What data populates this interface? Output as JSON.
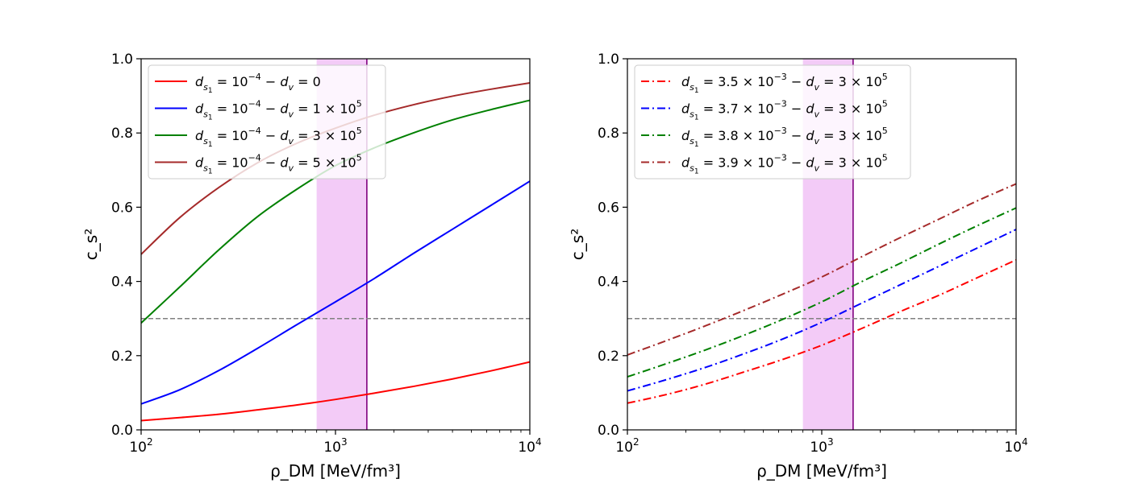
{
  "chart_data": [
    {
      "type": "line",
      "xscale": "log",
      "xlim": [
        100,
        10000
      ],
      "ylim": [
        0,
        1
      ],
      "xlabel": "ρ_DM [MeV/fm³]",
      "ylabel": "c_s²",
      "x_ticks": [
        {
          "base": "10",
          "exp": "2"
        },
        {
          "base": "10",
          "exp": "3"
        },
        {
          "base": "10",
          "exp": "4"
        }
      ],
      "y_ticks": [
        "0.0",
        "0.2",
        "0.4",
        "0.6",
        "0.8",
        "1.0"
      ],
      "hline": {
        "y": 0.3,
        "color": "#808080",
        "style": "dashed"
      },
      "band": {
        "x": [
          800,
          1450
        ],
        "color": "#e9a0f0"
      },
      "vline": {
        "x": 1450,
        "color": "#800080"
      },
      "legend": {
        "location": "upper-left"
      },
      "x": [
        100,
        158,
        251,
        398,
        631,
        1000,
        1585,
        2512,
        3981,
        6310,
        10000
      ],
      "series": [
        {
          "name": "d_s1 = 10^-4 − d_v = 0",
          "label_parts": [
            "d",
            "s",
            "1",
            " = 10",
            "−4",
            "  −  ",
            "d",
            "v",
            " = 0",
            ""
          ],
          "color": "#ff0000",
          "style": "solid",
          "values": [
            0.025,
            0.033,
            0.042,
            0.054,
            0.067,
            0.082,
            0.099,
            0.117,
            0.137,
            0.159,
            0.183
          ]
        },
        {
          "name": "d_s1 = 10^-4 − d_v = 1×10^5",
          "label_parts": [
            "d",
            "s",
            "1",
            " = 10",
            "−4",
            "  −  ",
            "d",
            "v",
            " = 1 × 10",
            "5"
          ],
          "color": "#0000ff",
          "style": "solid",
          "values": [
            0.07,
            0.108,
            0.16,
            0.22,
            0.283,
            0.345,
            0.408,
            0.475,
            0.54,
            0.605,
            0.67
          ]
        },
        {
          "name": "d_s1 = 10^-4 − d_v = 3×10^5",
          "label_parts": [
            "d",
            "s",
            "1",
            " = 10",
            "−4",
            "  −  ",
            "d",
            "v",
            " = 3 × 10",
            "5"
          ],
          "color": "#008000",
          "style": "solid",
          "values": [
            0.288,
            0.385,
            0.485,
            0.575,
            0.648,
            0.712,
            0.76,
            0.8,
            0.835,
            0.863,
            0.888
          ]
        },
        {
          "name": "d_s1 = 10^-4 − d_v = 5×10^5",
          "label_parts": [
            "d",
            "s",
            "1",
            " = 10",
            "−4",
            "  −  ",
            "d",
            "v",
            " = 5 × 10",
            "5"
          ],
          "color": "#a52a2a",
          "style": "solid",
          "values": [
            0.473,
            0.572,
            0.653,
            0.72,
            0.772,
            0.813,
            0.848,
            0.876,
            0.899,
            0.918,
            0.935
          ]
        }
      ]
    },
    {
      "type": "line",
      "xscale": "log",
      "xlim": [
        100,
        10000
      ],
      "ylim": [
        0,
        1
      ],
      "xlabel": "ρ_DM [MeV/fm³]",
      "ylabel": "c_s²",
      "x_ticks": [
        {
          "base": "10",
          "exp": "2"
        },
        {
          "base": "10",
          "exp": "3"
        },
        {
          "base": "10",
          "exp": "4"
        }
      ],
      "y_ticks": [
        "0.0",
        "0.2",
        "0.4",
        "0.6",
        "0.8",
        "1.0"
      ],
      "hline": {
        "y": 0.3,
        "color": "#808080",
        "style": "dashed"
      },
      "band": {
        "x": [
          800,
          1450
        ],
        "color": "#e9a0f0"
      },
      "vline": {
        "x": 1450,
        "color": "#800080"
      },
      "legend": {
        "location": "upper-left"
      },
      "x": [
        100,
        158,
        251,
        398,
        631,
        1000,
        1585,
        2512,
        3981,
        6310,
        10000
      ],
      "series": [
        {
          "name": "d_s1 = 3.5×10^-3 − d_v = 3×10^5",
          "label_parts": [
            "d",
            "s",
            "1",
            " = 3.5 × 10",
            "−3",
            "  −  ",
            "d",
            "v",
            " = 3 × 10",
            "5"
          ],
          "color": "#ff0000",
          "style": "dashdot",
          "values": [
            0.072,
            0.095,
            0.123,
            0.156,
            0.19,
            0.228,
            0.272,
            0.318,
            0.362,
            0.41,
            0.458
          ]
        },
        {
          "name": "d_s1 = 3.7×10^-3 − d_v = 3×10^5",
          "label_parts": [
            "d",
            "s",
            "1",
            " = 3.7 × 10",
            "−3",
            "  −  ",
            "d",
            "v",
            " = 3 × 10",
            "5"
          ],
          "color": "#0000ff",
          "style": "dashdot",
          "values": [
            0.105,
            0.135,
            0.168,
            0.205,
            0.245,
            0.29,
            0.34,
            0.39,
            0.44,
            0.49,
            0.54
          ]
        },
        {
          "name": "d_s1 = 3.8×10^-3 − d_v = 3×10^5",
          "label_parts": [
            "d",
            "s",
            "1",
            " = 3.8 × 10",
            "−3",
            "  −  ",
            "d",
            "v",
            " = 3 × 10",
            "5"
          ],
          "color": "#008000",
          "style": "dashdot",
          "values": [
            0.143,
            0.178,
            0.215,
            0.255,
            0.298,
            0.345,
            0.398,
            0.448,
            0.5,
            0.55,
            0.598
          ]
        },
        {
          "name": "d_s1 = 3.9×10^-3 − d_v = 3×10^5",
          "label_parts": [
            "d",
            "s",
            "1",
            " = 3.9 × 10",
            "−3",
            "  −  ",
            "d",
            "v",
            " = 3 × 10",
            "5"
          ],
          "color": "#a52a2a",
          "style": "dashdot",
          "values": [
            0.202,
            0.24,
            0.28,
            0.322,
            0.366,
            0.412,
            0.465,
            0.517,
            0.567,
            0.617,
            0.663
          ]
        }
      ]
    }
  ]
}
